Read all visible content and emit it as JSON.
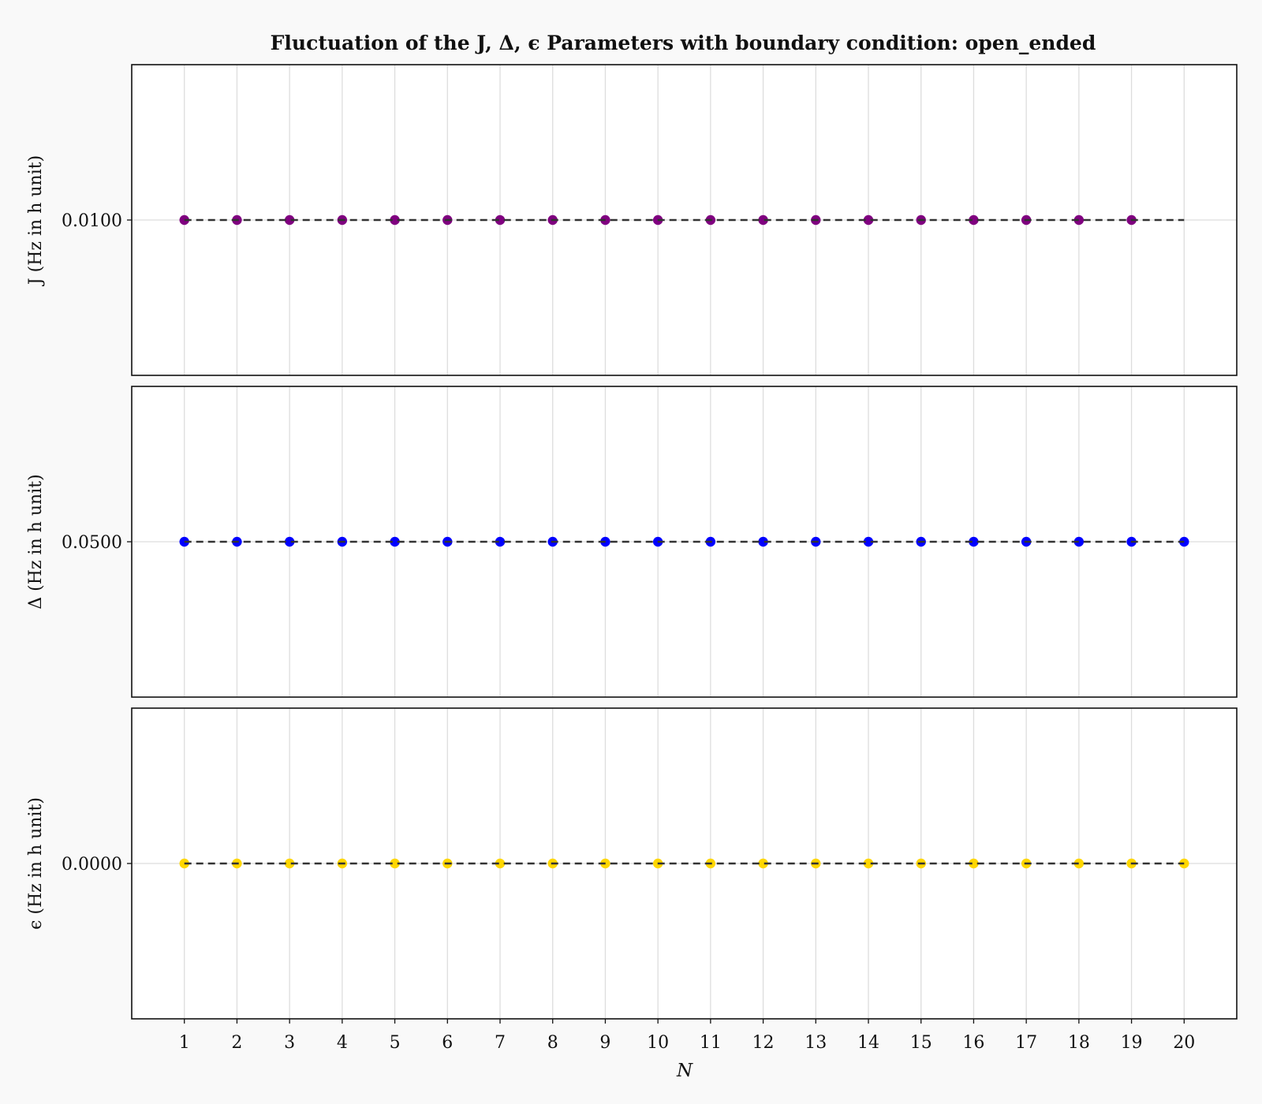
{
  "chart_data": {
    "type": "scatter",
    "title": "Fluctuation of the J, Δ, ϵ Parameters with boundary condition: open_ended",
    "xlabel": "N",
    "x_ticks": [
      1,
      2,
      3,
      4,
      5,
      6,
      7,
      8,
      9,
      10,
      11,
      12,
      13,
      14,
      15,
      16,
      17,
      18,
      19,
      20
    ],
    "xlim": [
      0,
      21
    ],
    "grid": "vertical",
    "panels": [
      {
        "key": "J",
        "ylabel": "J (Hz in h unit)",
        "ylim": [
          0.0096,
          0.0104
        ],
        "y_ticks": [
          {
            "value": 0.01,
            "label": "0.0100"
          }
        ],
        "color": "#800080",
        "reference_line": {
          "y": 0.01,
          "x_start": 1,
          "x_end": 20,
          "style": "dashed"
        },
        "x": [
          1,
          2,
          3,
          4,
          5,
          6,
          7,
          8,
          9,
          10,
          11,
          12,
          13,
          14,
          15,
          16,
          17,
          18,
          19
        ],
        "values": [
          0.01,
          0.01,
          0.01,
          0.01,
          0.01,
          0.01,
          0.01,
          0.01,
          0.01,
          0.01,
          0.01,
          0.01,
          0.01,
          0.01,
          0.01,
          0.01,
          0.01,
          0.01,
          0.01
        ]
      },
      {
        "key": "Delta",
        "ylabel": "Δ (Hz in h unit)",
        "ylim": [
          0.0498,
          0.0502
        ],
        "y_ticks": [
          {
            "value": 0.05,
            "label": "0.0500"
          }
        ],
        "color": "#0000ff",
        "reference_line": {
          "y": 0.05,
          "x_start": 1,
          "x_end": 20,
          "style": "dashed"
        },
        "x": [
          1,
          2,
          3,
          4,
          5,
          6,
          7,
          8,
          9,
          10,
          11,
          12,
          13,
          14,
          15,
          16,
          17,
          18,
          19,
          20
        ],
        "values": [
          0.05,
          0.05,
          0.05,
          0.05,
          0.05,
          0.05,
          0.05,
          0.05,
          0.05,
          0.05,
          0.05,
          0.05,
          0.05,
          0.05,
          0.05,
          0.05,
          0.05,
          0.05,
          0.05,
          0.05
        ]
      },
      {
        "key": "epsilon",
        "ylabel": "ϵ (Hz in h unit)",
        "ylim": [
          -0.0002,
          0.0002
        ],
        "y_ticks": [
          {
            "value": 0.0,
            "label": "0.0000"
          }
        ],
        "color": "#ffd700",
        "reference_line": {
          "y": 0.0,
          "x_start": 1,
          "x_end": 20,
          "style": "dashed"
        },
        "x": [
          1,
          2,
          3,
          4,
          5,
          6,
          7,
          8,
          9,
          10,
          11,
          12,
          13,
          14,
          15,
          16,
          17,
          18,
          19,
          20
        ],
        "values": [
          0,
          0,
          0,
          0,
          0,
          0,
          0,
          0,
          0,
          0,
          0,
          0,
          0,
          0,
          0,
          0,
          0,
          0,
          0,
          0
        ]
      }
    ]
  }
}
